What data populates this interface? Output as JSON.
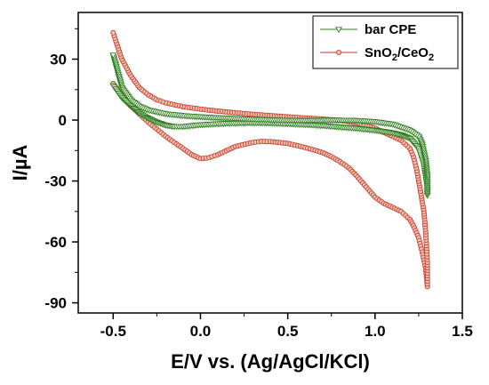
{
  "chart_data": {
    "type": "scatter",
    "title": "",
    "xlabel": "E/V vs. (Ag/AgCl/KCl)",
    "ylabel": "I/µA",
    "xlim": [
      -0.7,
      1.5
    ],
    "ylim": [
      -95,
      53
    ],
    "x_ticks": [
      -0.5,
      0.0,
      0.5,
      1.0,
      1.5
    ],
    "x_tick_labels": [
      "-0.5",
      "0.0",
      "0.5",
      "1.0",
      "1.5"
    ],
    "y_ticks": [
      -90,
      -60,
      -30,
      0,
      30
    ],
    "y_tick_labels": [
      "-90",
      "-60",
      "-30",
      "0",
      "30"
    ],
    "grid": false,
    "legend_position": "top-right",
    "series": [
      {
        "name": "bar CPE",
        "legend_label": {
          "base": "bar CPE"
        },
        "color": "#2e7d1e",
        "marker": "triangle-down",
        "forward": [
          [
            -0.5,
            17
          ],
          [
            -0.45,
            11
          ],
          [
            -0.4,
            7
          ],
          [
            -0.35,
            3.5
          ],
          [
            -0.3,
            1
          ],
          [
            -0.25,
            -1
          ],
          [
            -0.2,
            -2.5
          ],
          [
            -0.15,
            -3.2
          ],
          [
            -0.1,
            -3.2
          ],
          [
            0.0,
            -2.3
          ],
          [
            0.1,
            -1.8
          ],
          [
            0.2,
            -1.5
          ],
          [
            0.3,
            -1.3
          ],
          [
            0.4,
            -1.5
          ],
          [
            0.5,
            -1.8
          ],
          [
            0.6,
            -2.2
          ],
          [
            0.7,
            -2.7
          ],
          [
            0.8,
            -3.4
          ],
          [
            0.9,
            -4.1
          ],
          [
            1.0,
            -5
          ],
          [
            1.05,
            -5.6
          ],
          [
            1.1,
            -6.3
          ],
          [
            1.15,
            -7.3
          ],
          [
            1.2,
            -9
          ],
          [
            1.25,
            -14
          ],
          [
            1.28,
            -22
          ],
          [
            1.3,
            -33
          ],
          [
            1.3,
            -37
          ]
        ],
        "reverse": [
          [
            1.3,
            -37
          ],
          [
            1.3,
            -28
          ],
          [
            1.29,
            -20
          ],
          [
            1.27,
            -12
          ],
          [
            1.25,
            -8
          ],
          [
            1.2,
            -5
          ],
          [
            1.1,
            -2
          ],
          [
            1.0,
            -0.8
          ],
          [
            0.9,
            -0.2
          ],
          [
            0.8,
            0
          ],
          [
            0.7,
            0
          ],
          [
            0.6,
            -0.2
          ],
          [
            0.5,
            -0.1
          ],
          [
            0.4,
            0.1
          ],
          [
            0.3,
            0.4
          ],
          [
            0.2,
            0.8
          ],
          [
            0.1,
            1.2
          ],
          [
            0.0,
            1.6
          ],
          [
            -0.1,
            2.2
          ],
          [
            -0.2,
            3.1
          ],
          [
            -0.3,
            5
          ],
          [
            -0.35,
            6.8
          ],
          [
            -0.4,
            10
          ],
          [
            -0.45,
            16
          ],
          [
            -0.5,
            32
          ]
        ]
      },
      {
        "name": "SnO2/CeO2",
        "legend_label": {
          "base": "SnO",
          "sub1": "2",
          "mid": "/CeO",
          "sub2": "2"
        },
        "color": "#c0392b",
        "marker": "circle",
        "forward": [
          [
            -0.5,
            18
          ],
          [
            -0.45,
            12
          ],
          [
            -0.4,
            7
          ],
          [
            -0.35,
            3
          ],
          [
            -0.3,
            -1
          ],
          [
            -0.25,
            -4.5
          ],
          [
            -0.2,
            -8
          ],
          [
            -0.15,
            -11
          ],
          [
            -0.1,
            -14
          ],
          [
            -0.05,
            -17
          ],
          [
            0.0,
            -19
          ],
          [
            0.05,
            -18.5
          ],
          [
            0.1,
            -17
          ],
          [
            0.15,
            -15
          ],
          [
            0.2,
            -13
          ],
          [
            0.3,
            -11
          ],
          [
            0.35,
            -10.5
          ],
          [
            0.4,
            -10.6
          ],
          [
            0.5,
            -11.5
          ],
          [
            0.6,
            -13.5
          ],
          [
            0.7,
            -16
          ],
          [
            0.75,
            -18
          ],
          [
            0.8,
            -20.5
          ],
          [
            0.85,
            -23.5
          ],
          [
            0.9,
            -28
          ],
          [
            0.95,
            -33
          ],
          [
            1.0,
            -38
          ],
          [
            1.05,
            -41
          ],
          [
            1.1,
            -43
          ],
          [
            1.15,
            -45
          ],
          [
            1.2,
            -49
          ],
          [
            1.22,
            -52
          ],
          [
            1.25,
            -58
          ],
          [
            1.27,
            -65
          ],
          [
            1.29,
            -73
          ],
          [
            1.3,
            -82
          ]
        ],
        "reverse": [
          [
            1.3,
            -82
          ],
          [
            1.3,
            -70
          ],
          [
            1.29,
            -55
          ],
          [
            1.28,
            -45
          ],
          [
            1.26,
            -35
          ],
          [
            1.24,
            -25
          ],
          [
            1.22,
            -18
          ],
          [
            1.2,
            -14
          ],
          [
            1.15,
            -10
          ],
          [
            1.1,
            -8
          ],
          [
            1.05,
            -6
          ],
          [
            1.0,
            -4
          ],
          [
            0.9,
            -1.5
          ],
          [
            0.8,
            -0.2
          ],
          [
            0.7,
            0.5
          ],
          [
            0.6,
            1
          ],
          [
            0.5,
            1.6
          ],
          [
            0.4,
            2.2
          ],
          [
            0.3,
            2.8
          ],
          [
            0.2,
            3.6
          ],
          [
            0.1,
            4.4
          ],
          [
            0.0,
            5.4
          ],
          [
            -0.1,
            6.6
          ],
          [
            -0.2,
            8.5
          ],
          [
            -0.25,
            10
          ],
          [
            -0.3,
            12.5
          ],
          [
            -0.35,
            16
          ],
          [
            -0.4,
            22
          ],
          [
            -0.45,
            30
          ],
          [
            -0.5,
            43
          ]
        ]
      }
    ]
  }
}
